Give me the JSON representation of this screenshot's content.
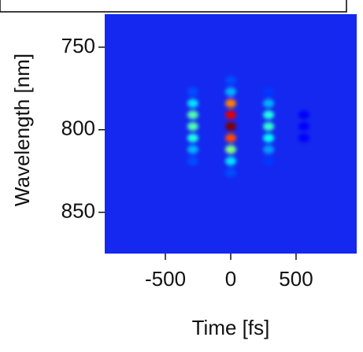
{
  "chart_data": {
    "type": "heatmap",
    "x_label": "Time [fs]",
    "y_label": "Wavelength [nm]",
    "xlim": [
      -964,
      964
    ],
    "xticks": [
      -500,
      0,
      500
    ],
    "ylim": [
      730,
      875
    ],
    "yticks": [
      750,
      800,
      850
    ],
    "y_reversed": true,
    "colormap": "jet",
    "background": "#1428f0",
    "x": [
      0,
      0,
      0,
      0,
      0,
      0,
      0,
      0,
      0,
      -290,
      -290,
      -290,
      -290,
      -290,
      -290,
      -290,
      290,
      290,
      290,
      290,
      290,
      290,
      290,
      560,
      560,
      560
    ],
    "y": [
      770,
      777,
      784,
      791,
      798,
      805,
      812,
      819,
      826,
      777,
      784,
      791,
      798,
      805,
      812,
      819,
      777,
      784,
      791,
      798,
      805,
      812,
      819,
      791,
      798,
      805
    ],
    "values": [
      0.2,
      0.3,
      0.75,
      0.9,
      1.0,
      0.8,
      0.5,
      0.35,
      0.2,
      0.2,
      0.35,
      0.45,
      0.45,
      0.4,
      0.3,
      0.2,
      0.18,
      0.3,
      0.4,
      0.42,
      0.38,
      0.28,
      0.18,
      0.12,
      0.12,
      0.12
    ]
  }
}
